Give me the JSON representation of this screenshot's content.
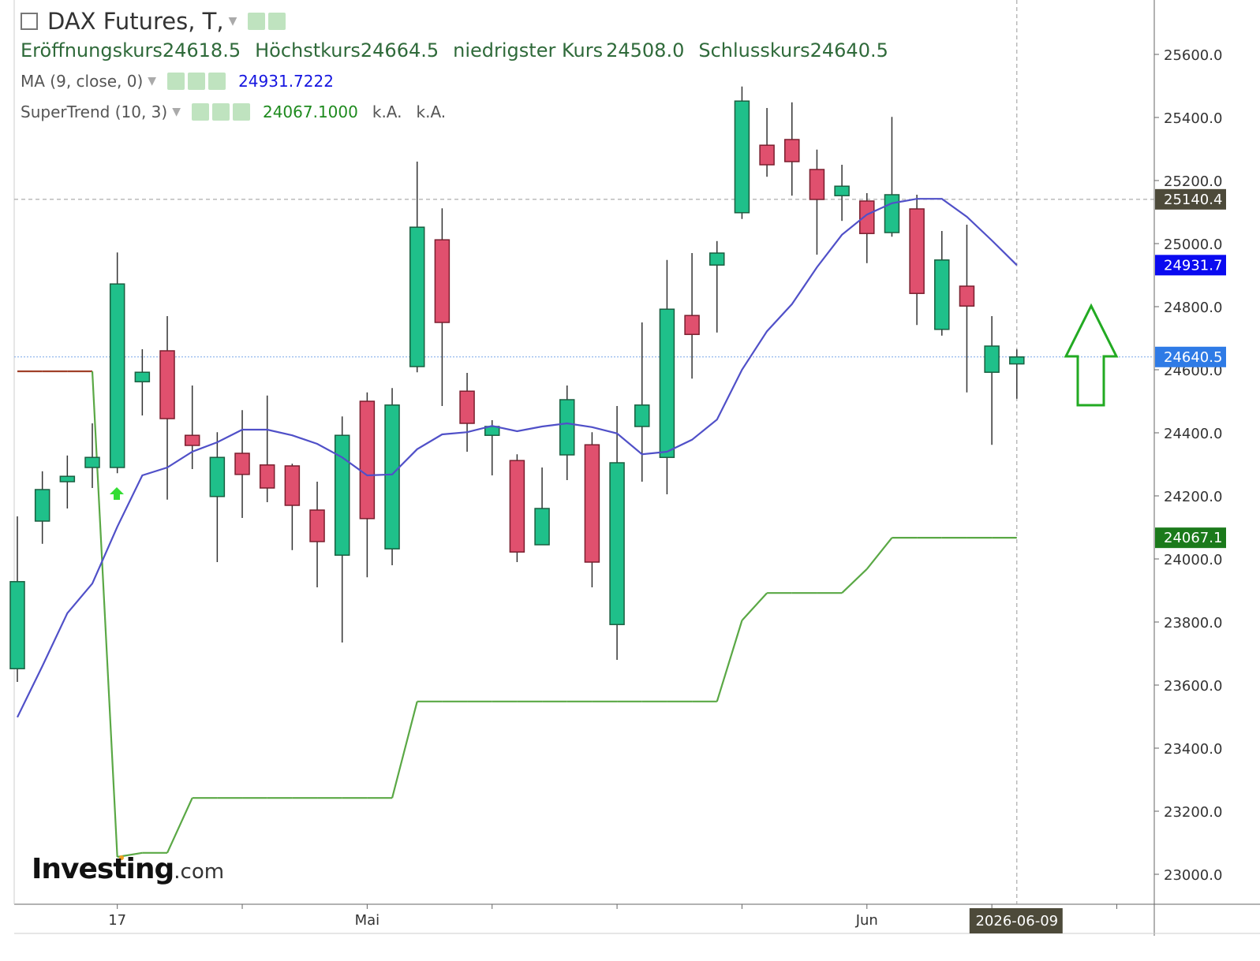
{
  "chart_data": {
    "type": "candlestick",
    "title": "DAX Futures, T,",
    "legend": {
      "open_label": "Eröffnungskurs",
      "open": "24618.5",
      "high_label": "Höchstkurs",
      "high": "24664.5",
      "low_label": "niedrigster Kurs",
      "low": "24508.0",
      "close_label": "Schlusskurs",
      "close": "24640.5"
    },
    "categories": [
      null,
      null,
      null,
      null,
      "17",
      null,
      null,
      null,
      null,
      null,
      null,
      null,
      null,
      null,
      "Mai",
      null,
      null,
      null,
      null,
      null,
      null,
      null,
      null,
      null,
      null,
      null,
      null,
      null,
      null,
      null,
      null,
      null,
      null,
      null,
      "Jun",
      null,
      null,
      null,
      null,
      null,
      "2026-06-09"
    ],
    "open": [
      23652,
      24120,
      24245,
      24290,
      24290,
      24562,
      24660,
      24392,
      24198,
      24335,
      24298,
      24295,
      24155,
      24012,
      24500,
      24032,
      24610,
      25012,
      24532,
      24392,
      24312,
      24045,
      24330,
      24362,
      23792,
      24420,
      24322,
      24772,
      24932,
      25098,
      25312,
      25330,
      25235,
      25152,
      25135,
      25035,
      25110,
      24728,
      24865,
      24592,
      24618.5
    ],
    "high": [
      24135,
      24278,
      24328,
      24430,
      24972,
      24665,
      24770,
      24550,
      24402,
      24472,
      24518,
      24302,
      24245,
      24452,
      24528,
      24542,
      25260,
      25112,
      24590,
      24440,
      24332,
      24290,
      24550,
      24402,
      24485,
      24750,
      24948,
      24970,
      25008,
      25498,
      25430,
      25448,
      25298,
      25250,
      25160,
      25402,
      25155,
      25040,
      25060,
      24770,
      24664.5
    ],
    "low": [
      23610,
      24048,
      24160,
      24225,
      24272,
      24455,
      24188,
      24285,
      23990,
      24130,
      24180,
      24028,
      23910,
      23735,
      23942,
      23980,
      24592,
      24485,
      24340,
      24265,
      23990,
      24045,
      24250,
      23910,
      23680,
      24245,
      24205,
      24572,
      24718,
      25078,
      25212,
      25152,
      24965,
      25072,
      24938,
      25022,
      24742,
      24708,
      24528,
      24362,
      24508
    ],
    "close": [
      23928,
      24220,
      24262,
      24322,
      24872,
      24592,
      24445,
      24360,
      24322,
      24268,
      24225,
      24170,
      24055,
      24392,
      24128,
      24488,
      25052,
      24750,
      24430,
      24420,
      24022,
      24160,
      24505,
      23990,
      24305,
      24488,
      24792,
      24712,
      24970,
      25452,
      25250,
      25260,
      25140,
      25182,
      25032,
      25155,
      24842,
      24948,
      24802,
      24675,
      24640.5
    ],
    "up_color": "#1fc08a",
    "down_color": "#e0506e",
    "ylim": [
      22905,
      25772.5
    ],
    "yticks": [
      {
        "value": 23000,
        "label": "23000.0"
      },
      {
        "value": 23200,
        "label": "23200.0"
      },
      {
        "value": 23400,
        "label": "23400.0"
      },
      {
        "value": 23600,
        "label": "23600.0"
      },
      {
        "value": 23800,
        "label": "23800.0"
      },
      {
        "value": 24000,
        "label": "24000.0"
      },
      {
        "value": 24200,
        "label": "24200.0"
      },
      {
        "value": 24400,
        "label": "24400.0"
      },
      {
        "value": 24600,
        "label": "24600.0"
      },
      {
        "value": 24800,
        "label": "24800.0"
      },
      {
        "value": 25000,
        "label": "25000.0"
      },
      {
        "value": 25200,
        "label": "25200.0"
      },
      {
        "value": 25400,
        "label": "25400.0"
      },
      {
        "value": 25600,
        "label": "25600.0"
      }
    ],
    "grid": false,
    "overlays": [
      {
        "name": "MA (9, close, 0)",
        "legend_value": 24931.7222,
        "color": "#5050c8",
        "values": [
          23498,
          23660,
          23828,
          23922,
          24102,
          24265,
          24290,
          24340,
          24370,
          24410,
          24410,
          24392,
          24365,
          24322,
          24265,
          24268,
          24348,
          24395,
          24402,
          24422,
          24405,
          24420,
          24430,
          24418,
          24398,
          24332,
          24340,
          24378,
          24442,
          24600,
          24722,
          24808,
          24925,
          25028,
          25092,
          25128,
          25142,
          25142,
          25085,
          25010,
          24931.7222
        ]
      },
      {
        "name": "SuperTrend (10, 3)",
        "legend_value": "24067.1000",
        "legend_extra": [
          "k.A.",
          "k.A."
        ],
        "colors": [
          "#a0402a",
          "#a0402a",
          "#a0402a",
          "#a0402a",
          "#5aa845",
          "#5aa845",
          "#5aa845",
          "#5aa845",
          "#5aa845",
          "#5aa845",
          "#5aa845",
          "#5aa845",
          "#5aa845",
          "#5aa845",
          "#5aa845",
          "#5aa845",
          "#5aa845",
          "#5aa845",
          "#5aa845",
          "#5aa845",
          "#5aa845",
          "#5aa845",
          "#5aa845",
          "#5aa845",
          "#5aa845",
          "#5aa845",
          "#5aa845",
          "#5aa845",
          "#5aa845",
          "#5aa845",
          "#5aa845",
          "#5aa845",
          "#5aa845",
          "#5aa845",
          "#5aa845",
          "#5aa845",
          "#5aa845",
          "#5aa845",
          "#5aa845",
          "#5aa845",
          "#5aa845"
        ],
        "values": [
          24595,
          24595,
          24595,
          24595,
          23055,
          23068,
          23068,
          23242,
          23242,
          23242,
          23242,
          23242,
          23242,
          23242,
          23242,
          23242,
          23548,
          23548,
          23548,
          23548,
          23548,
          23548,
          23548,
          23548,
          23548,
          23548,
          23548,
          23548,
          23548,
          23805,
          23892,
          23892,
          23892,
          23892,
          23968,
          24067.1,
          24067.1,
          24067.1,
          24067.1,
          24067.1,
          24067.1
        ]
      }
    ],
    "axis_badges": [
      {
        "value": 25140.4,
        "color": "#4d4a3a",
        "line": "dashed"
      },
      {
        "value": 24931.7,
        "color": "#0a0af0"
      },
      {
        "value": 24640.5,
        "color": "#2f7be6",
        "line": "dotted"
      },
      {
        "value": 24067.1,
        "color": "#1b7a1b"
      }
    ],
    "watermark": "Investing",
    "watermark_suffix": ".com"
  }
}
